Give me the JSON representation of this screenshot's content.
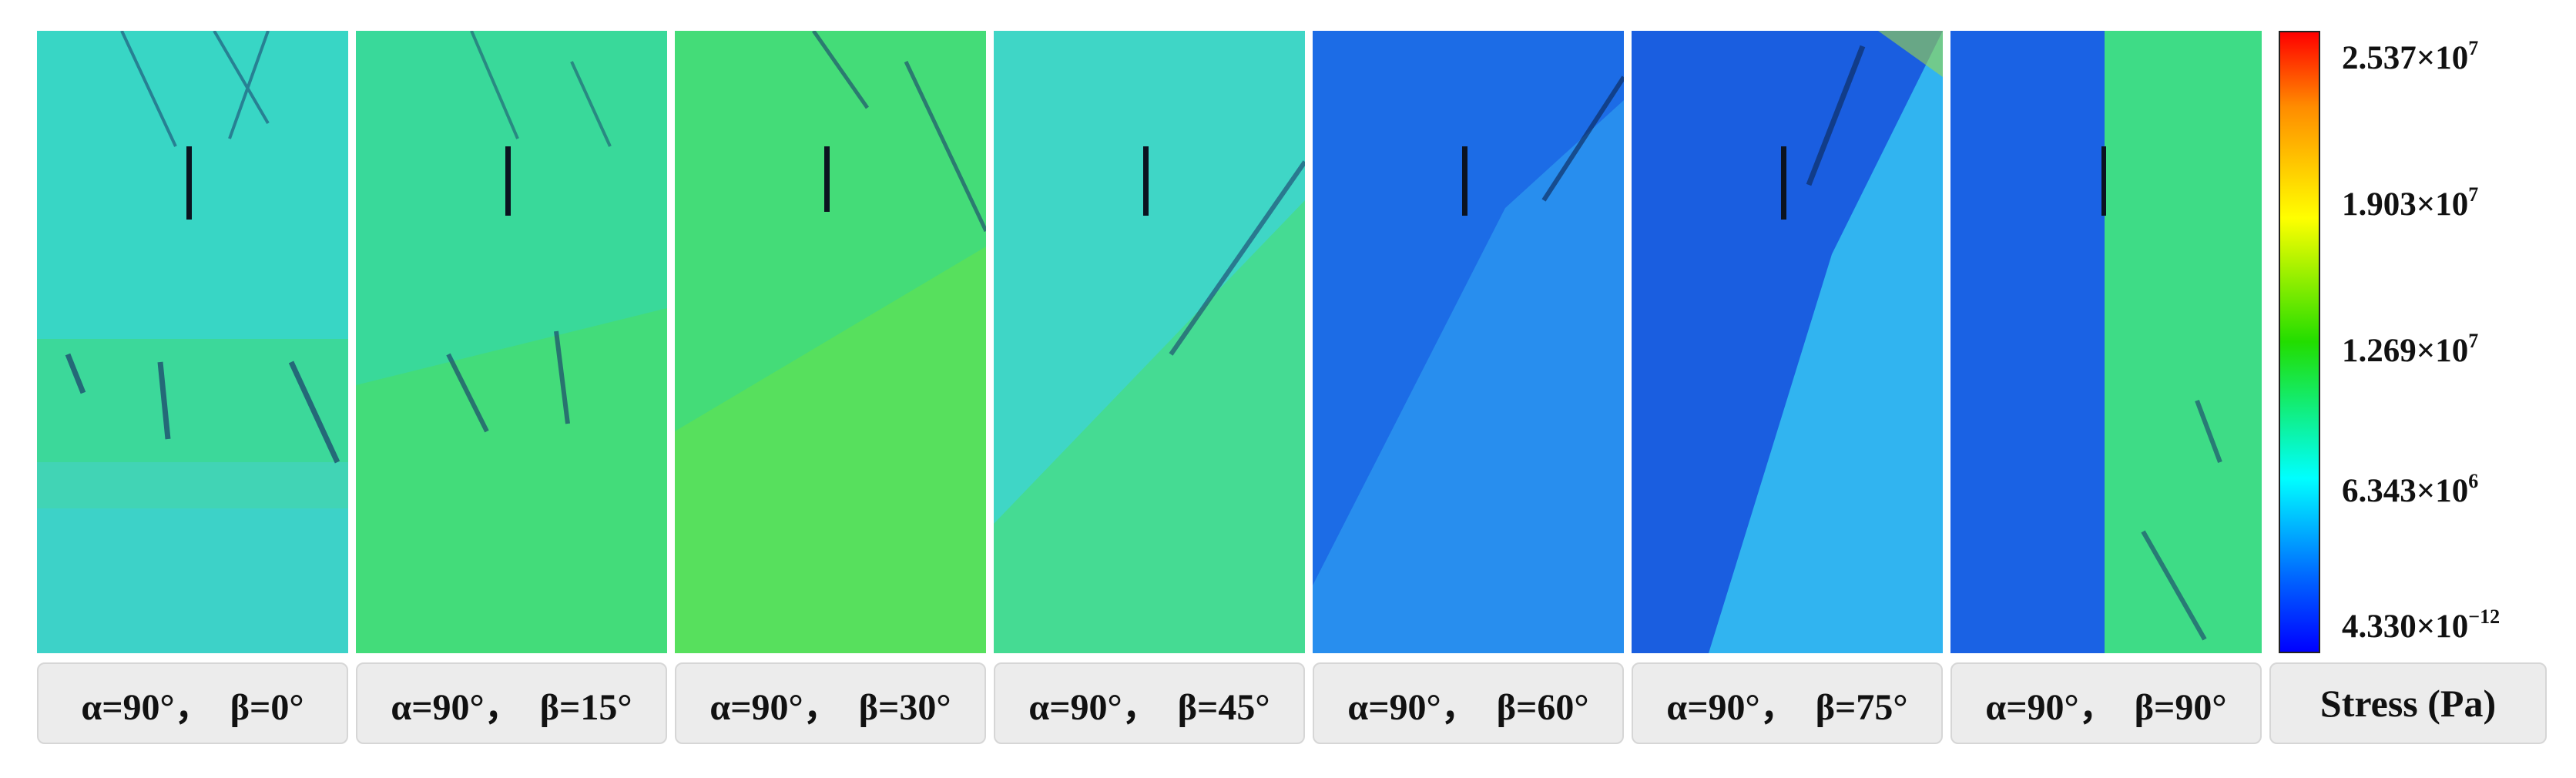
{
  "panels": [
    {
      "caption": "α=90°，  β=0°",
      "base_color": "#34d4c0",
      "alt_color": "#3ad990",
      "crack_visible": true
    },
    {
      "caption": "α=90°，  β=15°",
      "base_color": "#39d99a",
      "alt_color": "#44dd7a",
      "crack_visible": true
    },
    {
      "caption": "α=90°，  β=30°",
      "base_color": "#44dc78",
      "alt_color": "#50e060",
      "crack_visible": true
    },
    {
      "caption": "α=90°，  β=45°",
      "base_color": "#3fd6c6",
      "alt_color": "#48dc80",
      "crack_visible": true
    },
    {
      "caption": "α=90°，  β=60°",
      "base_color": "#1c6ce6",
      "alt_color": "#2a90ee",
      "crack_visible": true
    },
    {
      "caption": "α=90°，  β=75°",
      "base_color": "#1a5ee0",
      "alt_color": "#2fb6f0",
      "crack_visible": true
    },
    {
      "caption": "α=90°，  β=90°",
      "base_color": "#1a62e4",
      "alt_color": "#3edc86",
      "crack_visible": true
    }
  ],
  "colorbar": {
    "title": "Stress (Pa)",
    "labels": [
      {
        "mantissa": "2.537×10",
        "exp": "7"
      },
      {
        "mantissa": "1.903×10",
        "exp": "7"
      },
      {
        "mantissa": "1.269×10",
        "exp": "7"
      },
      {
        "mantissa": "6.343×10",
        "exp": "6"
      },
      {
        "mantissa": "4.330×10",
        "exp": "−12"
      }
    ],
    "colors": [
      "#ff0000",
      "#ffff00",
      "#22dd00",
      "#00ffff",
      "#0000ff"
    ]
  }
}
